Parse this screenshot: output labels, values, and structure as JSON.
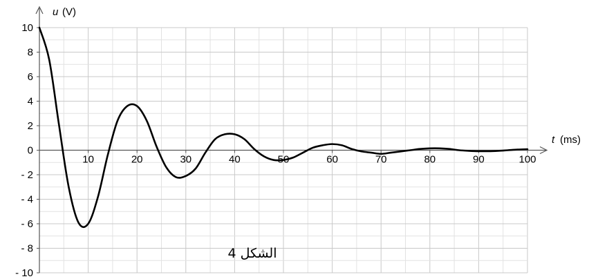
{
  "chart_data": {
    "type": "line",
    "title": "",
    "caption": "الشكل 4",
    "xlabel": {
      "symbol": "t",
      "unit": "(ms)"
    },
    "ylabel": {
      "symbol": "u",
      "unit": "(V)"
    },
    "xlim": [
      0,
      100
    ],
    "ylim": [
      -10,
      10
    ],
    "grid": true,
    "xticks": [
      {
        "value": 10,
        "label": "10"
      },
      {
        "value": 20,
        "label": "20"
      },
      {
        "value": 30,
        "label": "30"
      },
      {
        "value": 40,
        "label": "40"
      },
      {
        "value": 50,
        "label": "50"
      },
      {
        "value": 60,
        "label": "60"
      },
      {
        "value": 70,
        "label": "70"
      },
      {
        "value": 80,
        "label": "80"
      },
      {
        "value": 90,
        "label": "90"
      },
      {
        "value": 100,
        "label": "100"
      }
    ],
    "yticks": [
      {
        "value": 10,
        "label": "10"
      },
      {
        "value": 8,
        "label": "8"
      },
      {
        "value": 6,
        "label": "6"
      },
      {
        "value": 4,
        "label": "4"
      },
      {
        "value": 2,
        "label": "2"
      },
      {
        "value": 0,
        "label": "0"
      },
      {
        "value": -2,
        "label": "- 2"
      },
      {
        "value": -4,
        "label": "- 4"
      },
      {
        "value": -6,
        "label": "- 6"
      },
      {
        "value": -8,
        "label": "- 8"
      },
      {
        "value": -10,
        "label": "- 10"
      }
    ],
    "series": [
      {
        "color": "#000000",
        "x": [
          0,
          2,
          4,
          6,
          8,
          10,
          12,
          14,
          16,
          18,
          20,
          22,
          24,
          26,
          28,
          30,
          32,
          34,
          36,
          38,
          40,
          42,
          44,
          46,
          48,
          50,
          52,
          54,
          56,
          58,
          60,
          62,
          64,
          66,
          68,
          70,
          72,
          74,
          76,
          78,
          80,
          82,
          84,
          86,
          88,
          90,
          92,
          94,
          96,
          98,
          100
        ],
        "y": [
          10.0,
          7.4,
          2.1,
          -3.0,
          -5.9,
          -6.0,
          -3.8,
          -0.4,
          2.4,
          3.6,
          3.6,
          2.4,
          0.3,
          -1.4,
          -2.2,
          -2.1,
          -1.5,
          -0.2,
          0.9,
          1.3,
          1.3,
          0.9,
          0.1,
          -0.5,
          -0.8,
          -0.8,
          -0.6,
          -0.2,
          0.2,
          0.4,
          0.5,
          0.4,
          0.1,
          -0.1,
          -0.2,
          -0.3,
          -0.2,
          -0.1,
          0.0,
          0.1,
          0.15,
          0.15,
          0.1,
          0.0,
          -0.05,
          -0.08,
          -0.08,
          -0.05,
          0.0,
          0.05,
          0.08
        ]
      }
    ]
  }
}
